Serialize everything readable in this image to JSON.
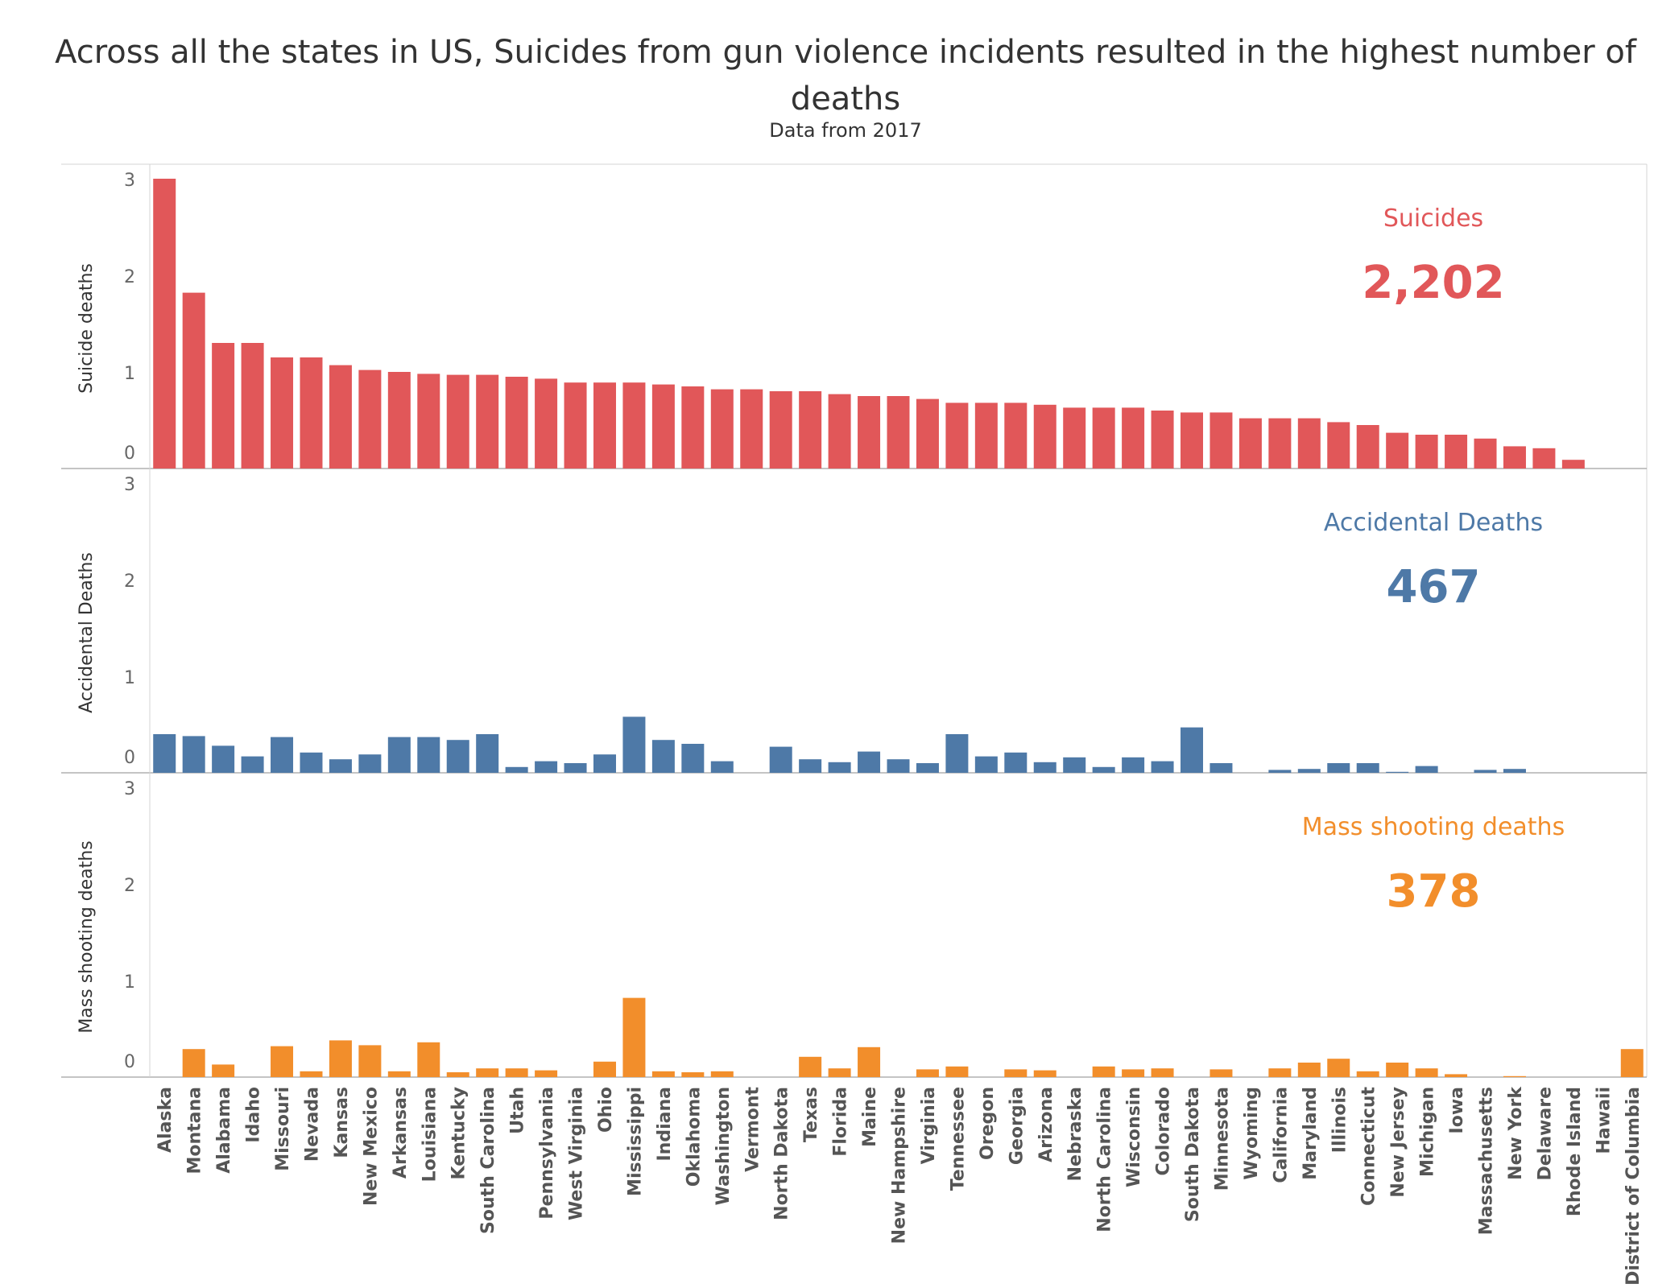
{
  "title": "Across all the states in US, Suicides from gun violence incidents resulted in the highest number of deaths",
  "subtitle": "Data from 2017",
  "chart_data": {
    "type": "bar",
    "categories": [
      "Alaska",
      "Montana",
      "Alabama",
      "Idaho",
      "Missouri",
      "Nevada",
      "Kansas",
      "New Mexico",
      "Arkansas",
      "Louisiana",
      "Kentucky",
      "South Carolina",
      "Utah",
      "Pennsylvania",
      "West Virginia",
      "Ohio",
      "Mississippi",
      "Indiana",
      "Oklahoma",
      "Washington",
      "Vermont",
      "North Dakota",
      "Texas",
      "Florida",
      "Maine",
      "New Hampshire",
      "Virginia",
      "Tennessee",
      "Oregon",
      "Georgia",
      "Arizona",
      "Nebraska",
      "North Carolina",
      "Wisconsin",
      "Colorado",
      "South Dakota",
      "Minnesota",
      "Wyoming",
      "California",
      "Maryland",
      "Illinois",
      "Connecticut",
      "New Jersey",
      "Michigan",
      "Iowa",
      "Massachusetts",
      "New York",
      "Delaware",
      "Rhode Island",
      "Hawaii",
      "District of Columbia"
    ],
    "ylim": [
      0,
      3
    ],
    "yticks": [
      "0",
      "1",
      "2",
      "3"
    ],
    "series": [
      {
        "name": "Suicides",
        "ylabel": "Suicide deaths",
        "total": "2,202",
        "color": "#e15759",
        "values": [
          3.0,
          1.82,
          1.3,
          1.3,
          1.15,
          1.15,
          1.07,
          1.02,
          1.0,
          0.98,
          0.97,
          0.97,
          0.95,
          0.93,
          0.89,
          0.89,
          0.89,
          0.87,
          0.85,
          0.82,
          0.82,
          0.8,
          0.8,
          0.77,
          0.75,
          0.75,
          0.72,
          0.68,
          0.68,
          0.68,
          0.66,
          0.63,
          0.63,
          0.63,
          0.6,
          0.58,
          0.58,
          0.52,
          0.52,
          0.52,
          0.48,
          0.45,
          0.37,
          0.35,
          0.35,
          0.31,
          0.23,
          0.21,
          0.09,
          0,
          0
        ]
      },
      {
        "name": "Accidental Deaths",
        "ylabel": "Accidental Deaths",
        "total": "467",
        "color": "#4e79a7",
        "values": [
          0.4,
          0.38,
          0.28,
          0.17,
          0.37,
          0.21,
          0.14,
          0.19,
          0.37,
          0.37,
          0.34,
          0.4,
          0.06,
          0.12,
          0.1,
          0.19,
          0.58,
          0.34,
          0.3,
          0.12,
          0,
          0.27,
          0.14,
          0.11,
          0.22,
          0.14,
          0.1,
          0.4,
          0.17,
          0.21,
          0.11,
          0.16,
          0.06,
          0.16,
          0.12,
          0.47,
          0.1,
          0,
          0.03,
          0.04,
          0.1,
          0.1,
          0.01,
          0.07,
          0,
          0.03,
          0.04,
          0,
          0,
          0,
          0
        ]
      },
      {
        "name": "Mass shooting deaths",
        "ylabel": "Mass shooting deaths",
        "total": "378",
        "color": "#f28e2b",
        "values": [
          0,
          0.29,
          0.13,
          0,
          0.32,
          0.06,
          0.38,
          0.33,
          0.06,
          0.36,
          0.05,
          0.09,
          0.09,
          0.07,
          0,
          0.16,
          0.82,
          0.06,
          0.05,
          0.06,
          0,
          0,
          0.21,
          0.09,
          0.31,
          0,
          0.08,
          0.11,
          0,
          0.08,
          0.07,
          0,
          0.11,
          0.08,
          0.09,
          0,
          0.08,
          0,
          0.09,
          0.15,
          0.19,
          0.06,
          0.15,
          0.09,
          0.03,
          0,
          0.01,
          0,
          0,
          0,
          0.29
        ]
      }
    ]
  }
}
